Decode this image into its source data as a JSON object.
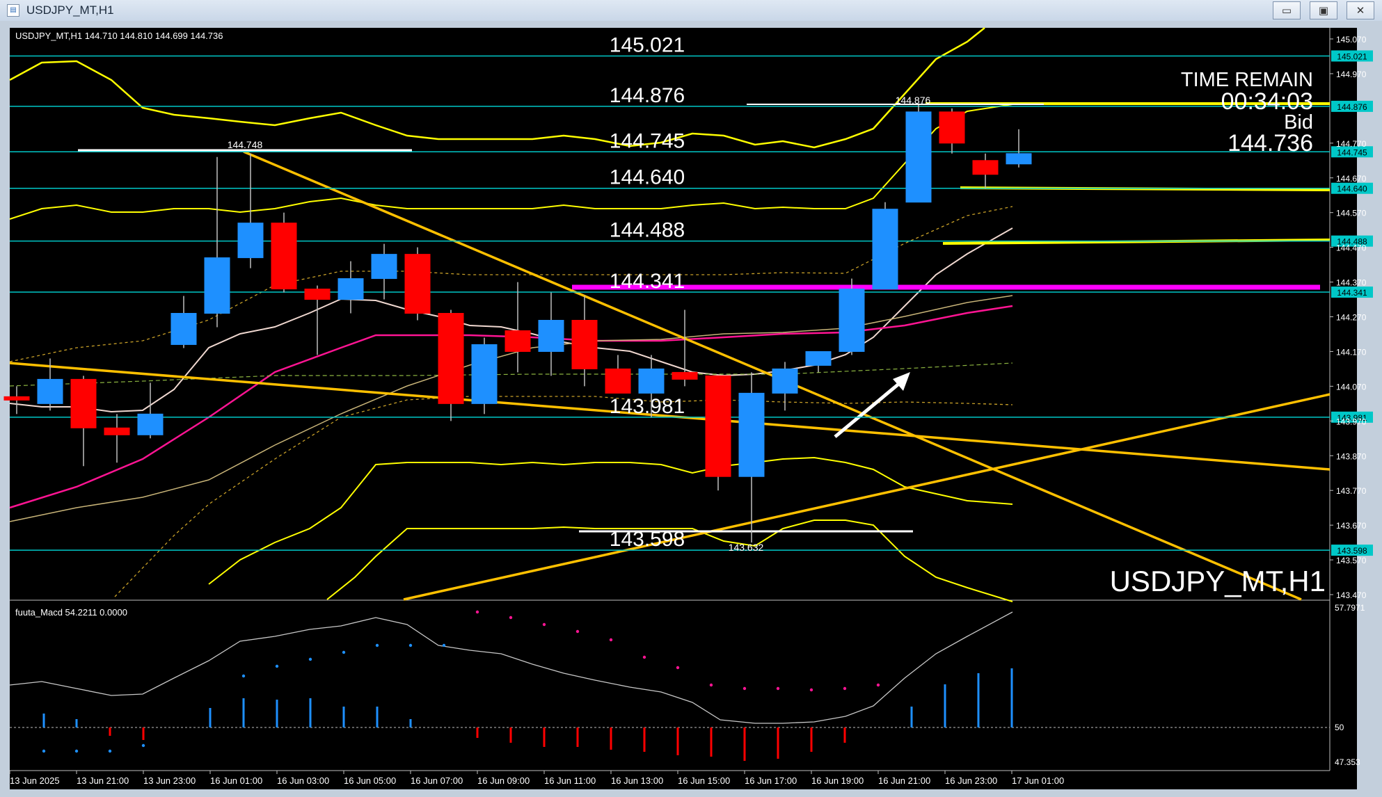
{
  "window": {
    "title": "USDJPY_MT,H1",
    "buttons": [
      "minimize",
      "maximize",
      "close"
    ]
  },
  "header": {
    "info": "USDJPY_MT,H1  144.710 144.810 144.699 144.736"
  },
  "watermark": "USDJPY_MT,H1",
  "time_remain": {
    "label": "TIME REMAIN",
    "value": "00:34:03",
    "bid_label": "Bid",
    "bid_value": "144.736"
  },
  "macd": {
    "label": "fuuta_Macd 54.2211   0.0000",
    "scale_top": "57.7971",
    "scale_mid": "50",
    "scale_bottom": "47.353"
  },
  "colors": {
    "up": "#1e90ff",
    "down": "#ff0000",
    "level_line": "#00c8c8",
    "yellow": "#ffd700",
    "magenta": "#ff00ff",
    "bollinger": "#ffff00"
  },
  "chart_data": {
    "type": "candlestick",
    "symbol": "USDJPY_MT",
    "timeframe": "H1",
    "ylim": [
      143.47,
      145.07
    ],
    "y_ticks": [
      "145.070",
      "144.970",
      "144.770",
      "144.670",
      "144.570",
      "144.470",
      "144.370",
      "144.270",
      "144.170",
      "144.070",
      "143.970",
      "143.870",
      "143.770",
      "143.670",
      "143.570",
      "143.470"
    ],
    "x_ticks": [
      "13 Jun 2025",
      "13 Jun 21:00",
      "13 Jun 23:00",
      "16 Jun 01:00",
      "16 Jun 03:00",
      "16 Jun 05:00",
      "16 Jun 07:00",
      "16 Jun 09:00",
      "16 Jun 11:00",
      "16 Jun 13:00",
      "16 Jun 15:00",
      "16 Jun 17:00",
      "16 Jun 19:00",
      "16 Jun 21:00",
      "16 Jun 23:00",
      "17 Jun 01:00"
    ],
    "level_lines": [
      {
        "value": 145.021,
        "label": "145.021",
        "tag": "145.021"
      },
      {
        "value": 144.876,
        "label": "144.876",
        "tag": "144.876"
      },
      {
        "value": 144.745,
        "label": "144.745",
        "tag": "144.745"
      },
      {
        "value": 144.64,
        "label": "144.640",
        "tag": "144.640"
      },
      {
        "value": 144.488,
        "label": "144.488",
        "tag": "144.488"
      },
      {
        "value": 144.341,
        "label": "144.341",
        "tag": "144.341"
      },
      {
        "value": 143.981,
        "label": "143.981",
        "tag": "143.981"
      },
      {
        "value": 143.598,
        "label": "143.598",
        "tag": "143.598"
      }
    ],
    "small_labels": [
      {
        "text": "144.748",
        "value": 144.748
      },
      {
        "text": "144.876",
        "value": 144.876
      },
      {
        "text": "143.632",
        "value": 143.632
      }
    ],
    "candles": [
      {
        "o": 144.04,
        "h": 144.07,
        "l": 143.99,
        "c": 144.03
      },
      {
        "o": 144.02,
        "h": 144.15,
        "l": 144.0,
        "c": 144.09
      },
      {
        "o": 144.09,
        "h": 144.1,
        "l": 143.84,
        "c": 143.95
      },
      {
        "o": 143.95,
        "h": 143.99,
        "l": 143.85,
        "c": 143.93
      },
      {
        "o": 143.93,
        "h": 144.08,
        "l": 143.92,
        "c": 143.99
      },
      {
        "o": 144.19,
        "h": 144.33,
        "l": 144.18,
        "c": 144.28
      },
      {
        "o": 144.28,
        "h": 144.73,
        "l": 144.24,
        "c": 144.44
      },
      {
        "o": 144.44,
        "h": 144.74,
        "l": 144.41,
        "c": 144.54
      },
      {
        "o": 144.54,
        "h": 144.57,
        "l": 144.34,
        "c": 144.35
      },
      {
        "o": 144.35,
        "h": 144.36,
        "l": 144.16,
        "c": 144.32
      },
      {
        "o": 144.32,
        "h": 144.43,
        "l": 144.28,
        "c": 144.38
      },
      {
        "o": 144.38,
        "h": 144.48,
        "l": 144.32,
        "c": 144.45
      },
      {
        "o": 144.45,
        "h": 144.47,
        "l": 144.26,
        "c": 144.28
      },
      {
        "o": 144.28,
        "h": 144.29,
        "l": 143.97,
        "c": 144.02
      },
      {
        "o": 144.02,
        "h": 144.21,
        "l": 143.99,
        "c": 144.19
      },
      {
        "o": 144.23,
        "h": 144.37,
        "l": 144.11,
        "c": 144.17
      },
      {
        "o": 144.17,
        "h": 144.34,
        "l": 144.1,
        "c": 144.26
      },
      {
        "o": 144.26,
        "h": 144.33,
        "l": 144.07,
        "c": 144.12
      },
      {
        "o": 144.12,
        "h": 144.16,
        "l": 144.05,
        "c": 144.05
      },
      {
        "o": 144.05,
        "h": 144.16,
        "l": 143.98,
        "c": 144.12
      },
      {
        "o": 144.11,
        "h": 144.29,
        "l": 144.07,
        "c": 144.09
      },
      {
        "o": 144.1,
        "h": 144.1,
        "l": 143.77,
        "c": 143.81
      },
      {
        "o": 143.81,
        "h": 144.11,
        "l": 143.62,
        "c": 144.05
      },
      {
        "o": 144.05,
        "h": 144.14,
        "l": 144.0,
        "c": 144.12
      },
      {
        "o": 144.13,
        "h": 144.17,
        "l": 144.11,
        "c": 144.17
      },
      {
        "o": 144.17,
        "h": 144.38,
        "l": 144.16,
        "c": 144.35
      },
      {
        "o": 144.35,
        "h": 144.6,
        "l": 144.35,
        "c": 144.58
      },
      {
        "o": 144.6,
        "h": 144.88,
        "l": 144.6,
        "c": 144.86
      },
      {
        "o": 144.86,
        "h": 144.87,
        "l": 144.74,
        "c": 144.77
      },
      {
        "o": 144.72,
        "h": 144.74,
        "l": 144.64,
        "c": 144.68
      },
      {
        "o": 144.71,
        "h": 144.81,
        "l": 144.7,
        "c": 144.74
      }
    ]
  }
}
